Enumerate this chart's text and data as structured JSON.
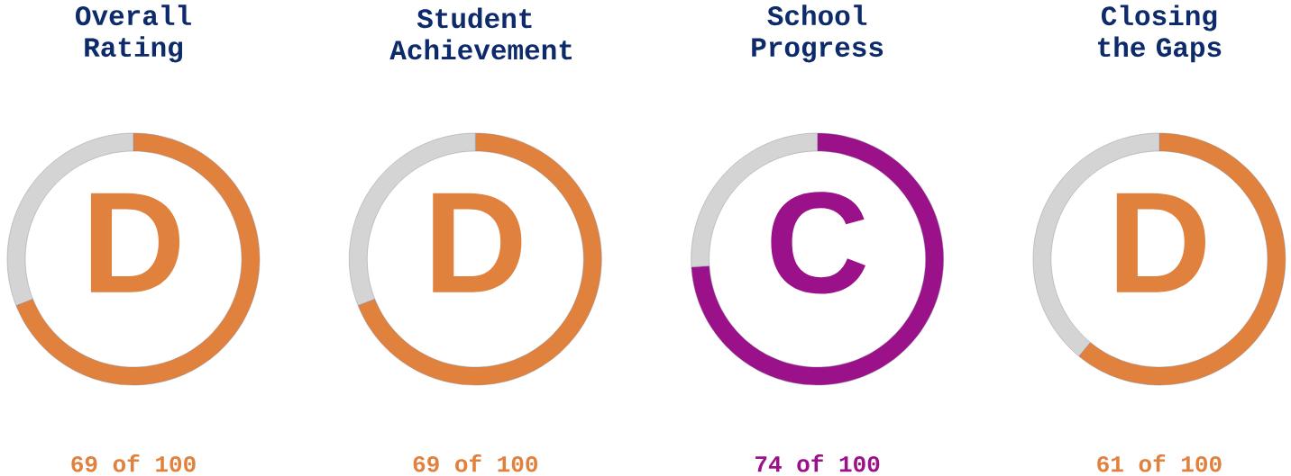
{
  "chart_data": [
    {
      "type": "donut",
      "title": "Overall Rating",
      "categories": [
        null,
        null
      ],
      "values": [
        69,
        31
      ],
      "colors": [
        "#e0813d",
        "#d4d4d4"
      ],
      "annotations": [
        "D",
        "69 of 100"
      ]
    },
    {
      "type": "donut",
      "title": "Student Achievement",
      "categories": [
        null,
        null
      ],
      "values": [
        69,
        31
      ],
      "colors": [
        "#e0813d",
        "#d4d4d4"
      ],
      "annotations": [
        "D",
        "69 of 100"
      ]
    },
    {
      "type": "donut",
      "title": "School Progress",
      "categories": [
        null,
        null
      ],
      "values": [
        74,
        26
      ],
      "colors": [
        "#9b118a",
        "#d4d4d4"
      ],
      "annotations": [
        "C",
        "74 of 100"
      ]
    },
    {
      "type": "donut",
      "title": "Closing the Gaps",
      "categories": [
        null,
        null
      ],
      "values": [
        61,
        39
      ],
      "colors": [
        "#e0813d",
        "#d4d4d4"
      ],
      "annotations": [
        "D",
        "61 of 100"
      ]
    }
  ]
}
